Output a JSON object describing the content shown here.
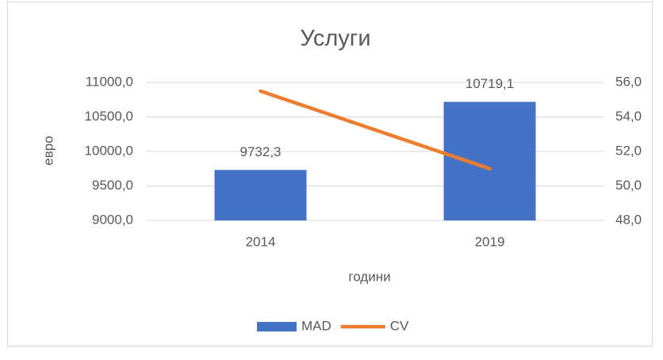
{
  "chart_data": {
    "type": "bar",
    "title": "Услуги",
    "xlabel": "години",
    "ylabel": "евро",
    "categories": [
      "2014",
      "2019"
    ],
    "series": [
      {
        "name": "MAD",
        "type": "bar",
        "color": "#4472c4",
        "values": [
          9732.3,
          10719.1
        ],
        "value_labels": [
          "9732,3",
          "10719,1"
        ]
      },
      {
        "name": "CV",
        "type": "line",
        "axis": "y2",
        "color": "#ed7d31",
        "values": [
          55.5,
          51.0
        ]
      }
    ],
    "ylim": [
      9000,
      11000
    ],
    "yticks": [
      {
        "value": 9000,
        "label": "9000,0"
      },
      {
        "value": 9500,
        "label": "9500,0"
      },
      {
        "value": 10000,
        "label": "10000,0"
      },
      {
        "value": 10500,
        "label": "10500,0"
      },
      {
        "value": 11000,
        "label": "11000,0"
      }
    ],
    "y2lim": [
      48,
      56
    ],
    "y2ticks": [
      {
        "value": 48,
        "label": "48,0"
      },
      {
        "value": 50,
        "label": "50,0"
      },
      {
        "value": 52,
        "label": "52,0"
      },
      {
        "value": 54,
        "label": "54,0"
      },
      {
        "value": 56,
        "label": "56,0"
      }
    ],
    "grid": true,
    "legend": "bottom"
  }
}
